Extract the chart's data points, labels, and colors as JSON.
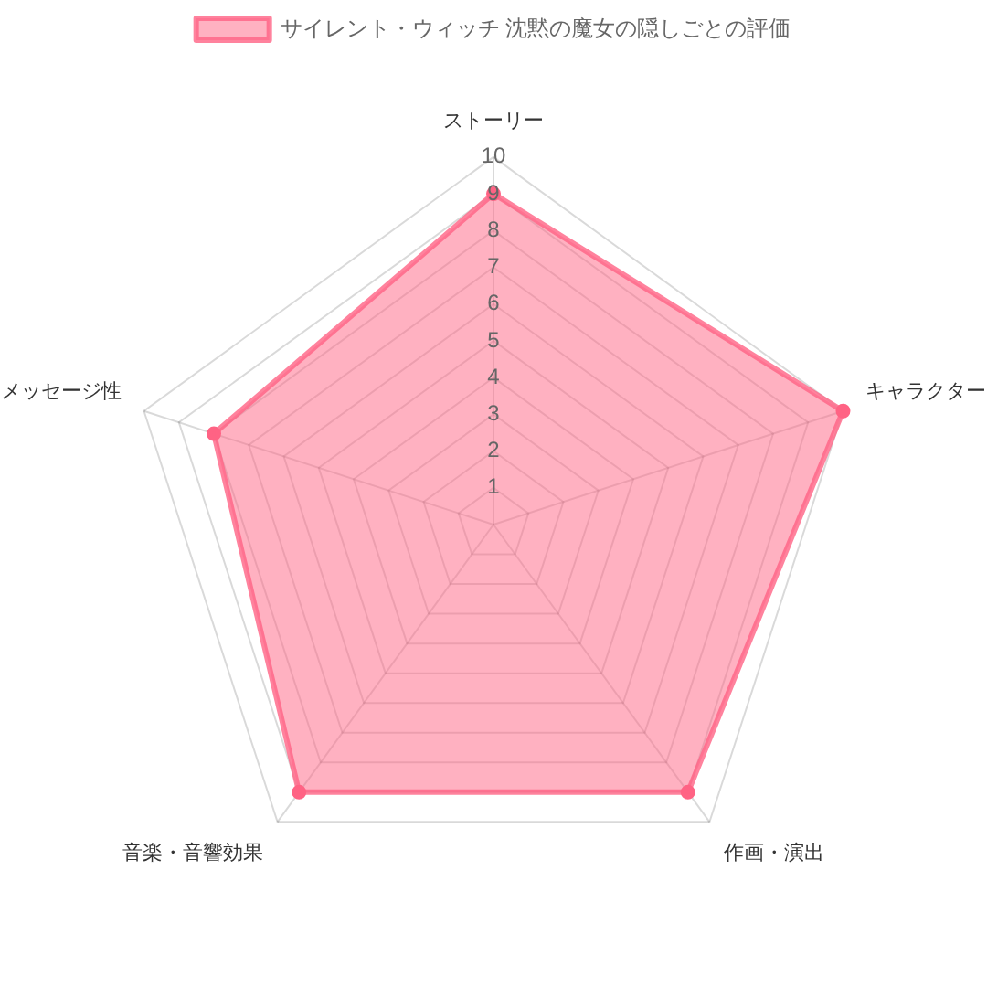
{
  "chart_data": {
    "type": "radar",
    "categories": [
      "ストーリー",
      "キャラクター",
      "作画・演出",
      "音楽・音響効果",
      "メッセージ性"
    ],
    "series": [
      {
        "name": "サイレント・ウィッチ 沈黙の魔女の隠しごとの評価",
        "color": "#ff6384",
        "values": [
          9,
          10,
          9,
          9,
          8
        ]
      }
    ],
    "ylim": [
      0,
      10
    ],
    "yticks": [
      1,
      2,
      3,
      4,
      5,
      6,
      7,
      8,
      9,
      10
    ],
    "grid": true,
    "legend": "top",
    "marker": "circle"
  }
}
